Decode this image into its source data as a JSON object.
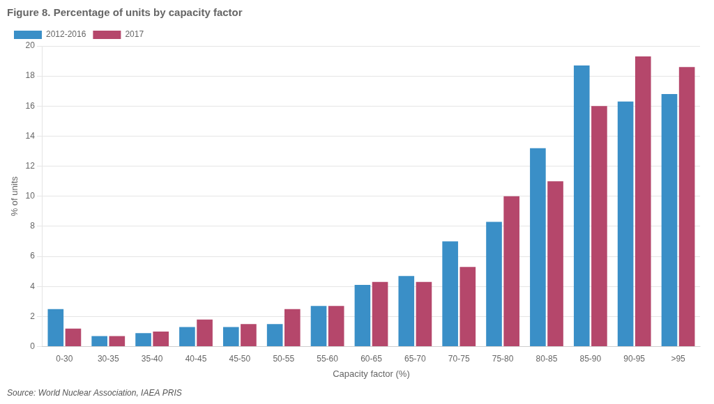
{
  "chart_data": {
    "type": "bar",
    "title": "Figure 8. Percentage of units by capacity factor",
    "annotations": [
      "Source: World Nuclear Association, IAEA PRIS"
    ],
    "xlabel": "Capacity factor (%)",
    "ylabel": "% of units",
    "categories": [
      "0-30",
      "30-35",
      "35-40",
      "40-45",
      "45-50",
      "50-55",
      "55-60",
      "60-65",
      "65-70",
      "70-75",
      "75-80",
      "80-85",
      "85-90",
      "90-95",
      ">95"
    ],
    "series": [
      {
        "name": "2012-2016",
        "color": "#3a8fc7",
        "values": [
          2.5,
          0.7,
          0.9,
          1.3,
          1.3,
          1.5,
          2.7,
          4.1,
          4.7,
          7.0,
          8.3,
          13.2,
          18.7,
          16.3,
          16.8
        ]
      },
      {
        "name": "2017",
        "color": "#b5476b",
        "values": [
          1.2,
          0.7,
          1.0,
          1.8,
          1.5,
          2.5,
          2.7,
          4.3,
          4.3,
          5.3,
          10.0,
          11.0,
          16.0,
          19.3,
          18.6
        ]
      }
    ],
    "ylim": [
      0,
      20
    ],
    "yticks": [
      0,
      2,
      4,
      6,
      8,
      10,
      12,
      14,
      16,
      18,
      20
    ],
    "grid": true,
    "legend": "upper left"
  }
}
